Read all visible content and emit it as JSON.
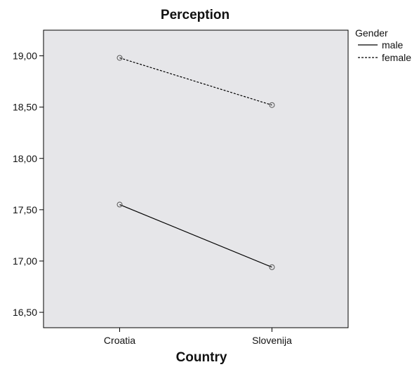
{
  "chart_data": {
    "type": "line",
    "title": "Perception",
    "xlabel": "Country",
    "ylabel": "",
    "categories": [
      "Croatia",
      "Slovenija"
    ],
    "ylim": [
      16.35,
      19.25
    ],
    "yticks": [
      16.5,
      17.0,
      17.5,
      18.0,
      18.5,
      19.0
    ],
    "ytick_labels": [
      "16,50",
      "17,00",
      "17,50",
      "18,00",
      "18,50",
      "19,00"
    ],
    "grid": false,
    "legend": {
      "title": "Gender",
      "placement": "right"
    },
    "series": [
      {
        "name": "male",
        "values": [
          17.55,
          16.94
        ],
        "line_style": "solid",
        "color": "#000000"
      },
      {
        "name": "female",
        "values": [
          18.98,
          18.52
        ],
        "line_style": "dashed",
        "color": "#000000"
      }
    ],
    "plot_background": "#e6e6e9"
  }
}
